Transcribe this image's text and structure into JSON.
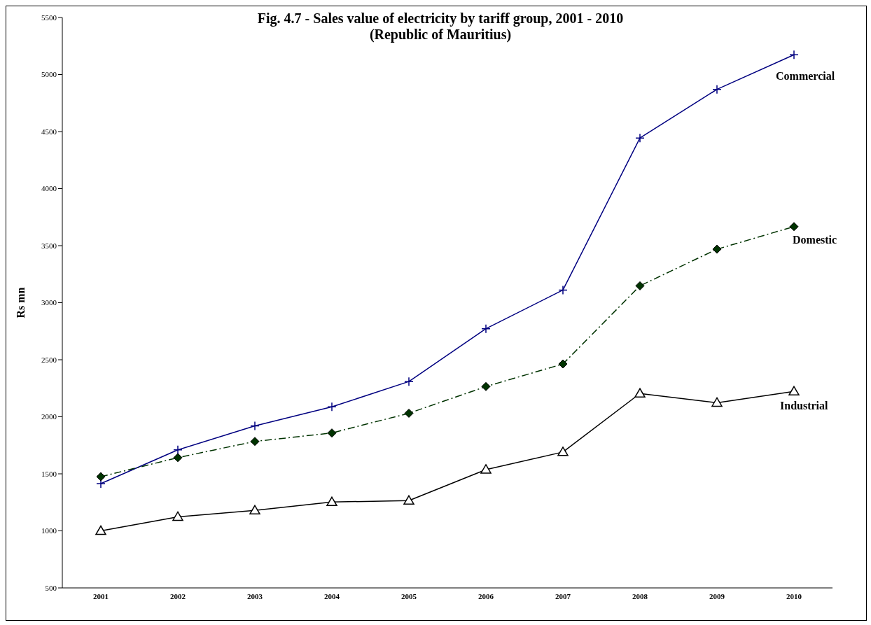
{
  "chart_data": {
    "type": "line",
    "title": "Fig. 4.7 - Sales value of electricity by tariff group, 2001 - 2010",
    "subtitle": "(Republic of Mauritius)",
    "ylabel": "Rs mn",
    "categories": [
      "2001",
      "2002",
      "2003",
      "2004",
      "2005",
      "2006",
      "2007",
      "2008",
      "2009",
      "2010"
    ],
    "ylim": [
      500,
      5500
    ],
    "yticks": [
      500,
      1000,
      1500,
      2000,
      2500,
      3000,
      3500,
      4000,
      4500,
      5000,
      5500
    ],
    "grid": false,
    "legend": false,
    "series": [
      {
        "name": "Commercial",
        "color": "#000080",
        "marker": "cross",
        "line_style": "solid",
        "values": [
          1414,
          1710,
          1920,
          2087,
          2309,
          2772,
          3111,
          4444,
          4870,
          5173
        ]
      },
      {
        "name": "Domestic",
        "color": "#003300",
        "marker": "diamond",
        "line_style": "dashed",
        "values": [
          1475,
          1642,
          1784,
          1858,
          2031,
          2265,
          2463,
          3148,
          3469,
          3667
        ]
      },
      {
        "name": "Industrial",
        "color": "#000000",
        "marker": "triangle",
        "line_style": "solid",
        "values": [
          1000,
          1123,
          1179,
          1253,
          1265,
          1537,
          1691,
          2204,
          2123,
          2222
        ]
      }
    ]
  }
}
